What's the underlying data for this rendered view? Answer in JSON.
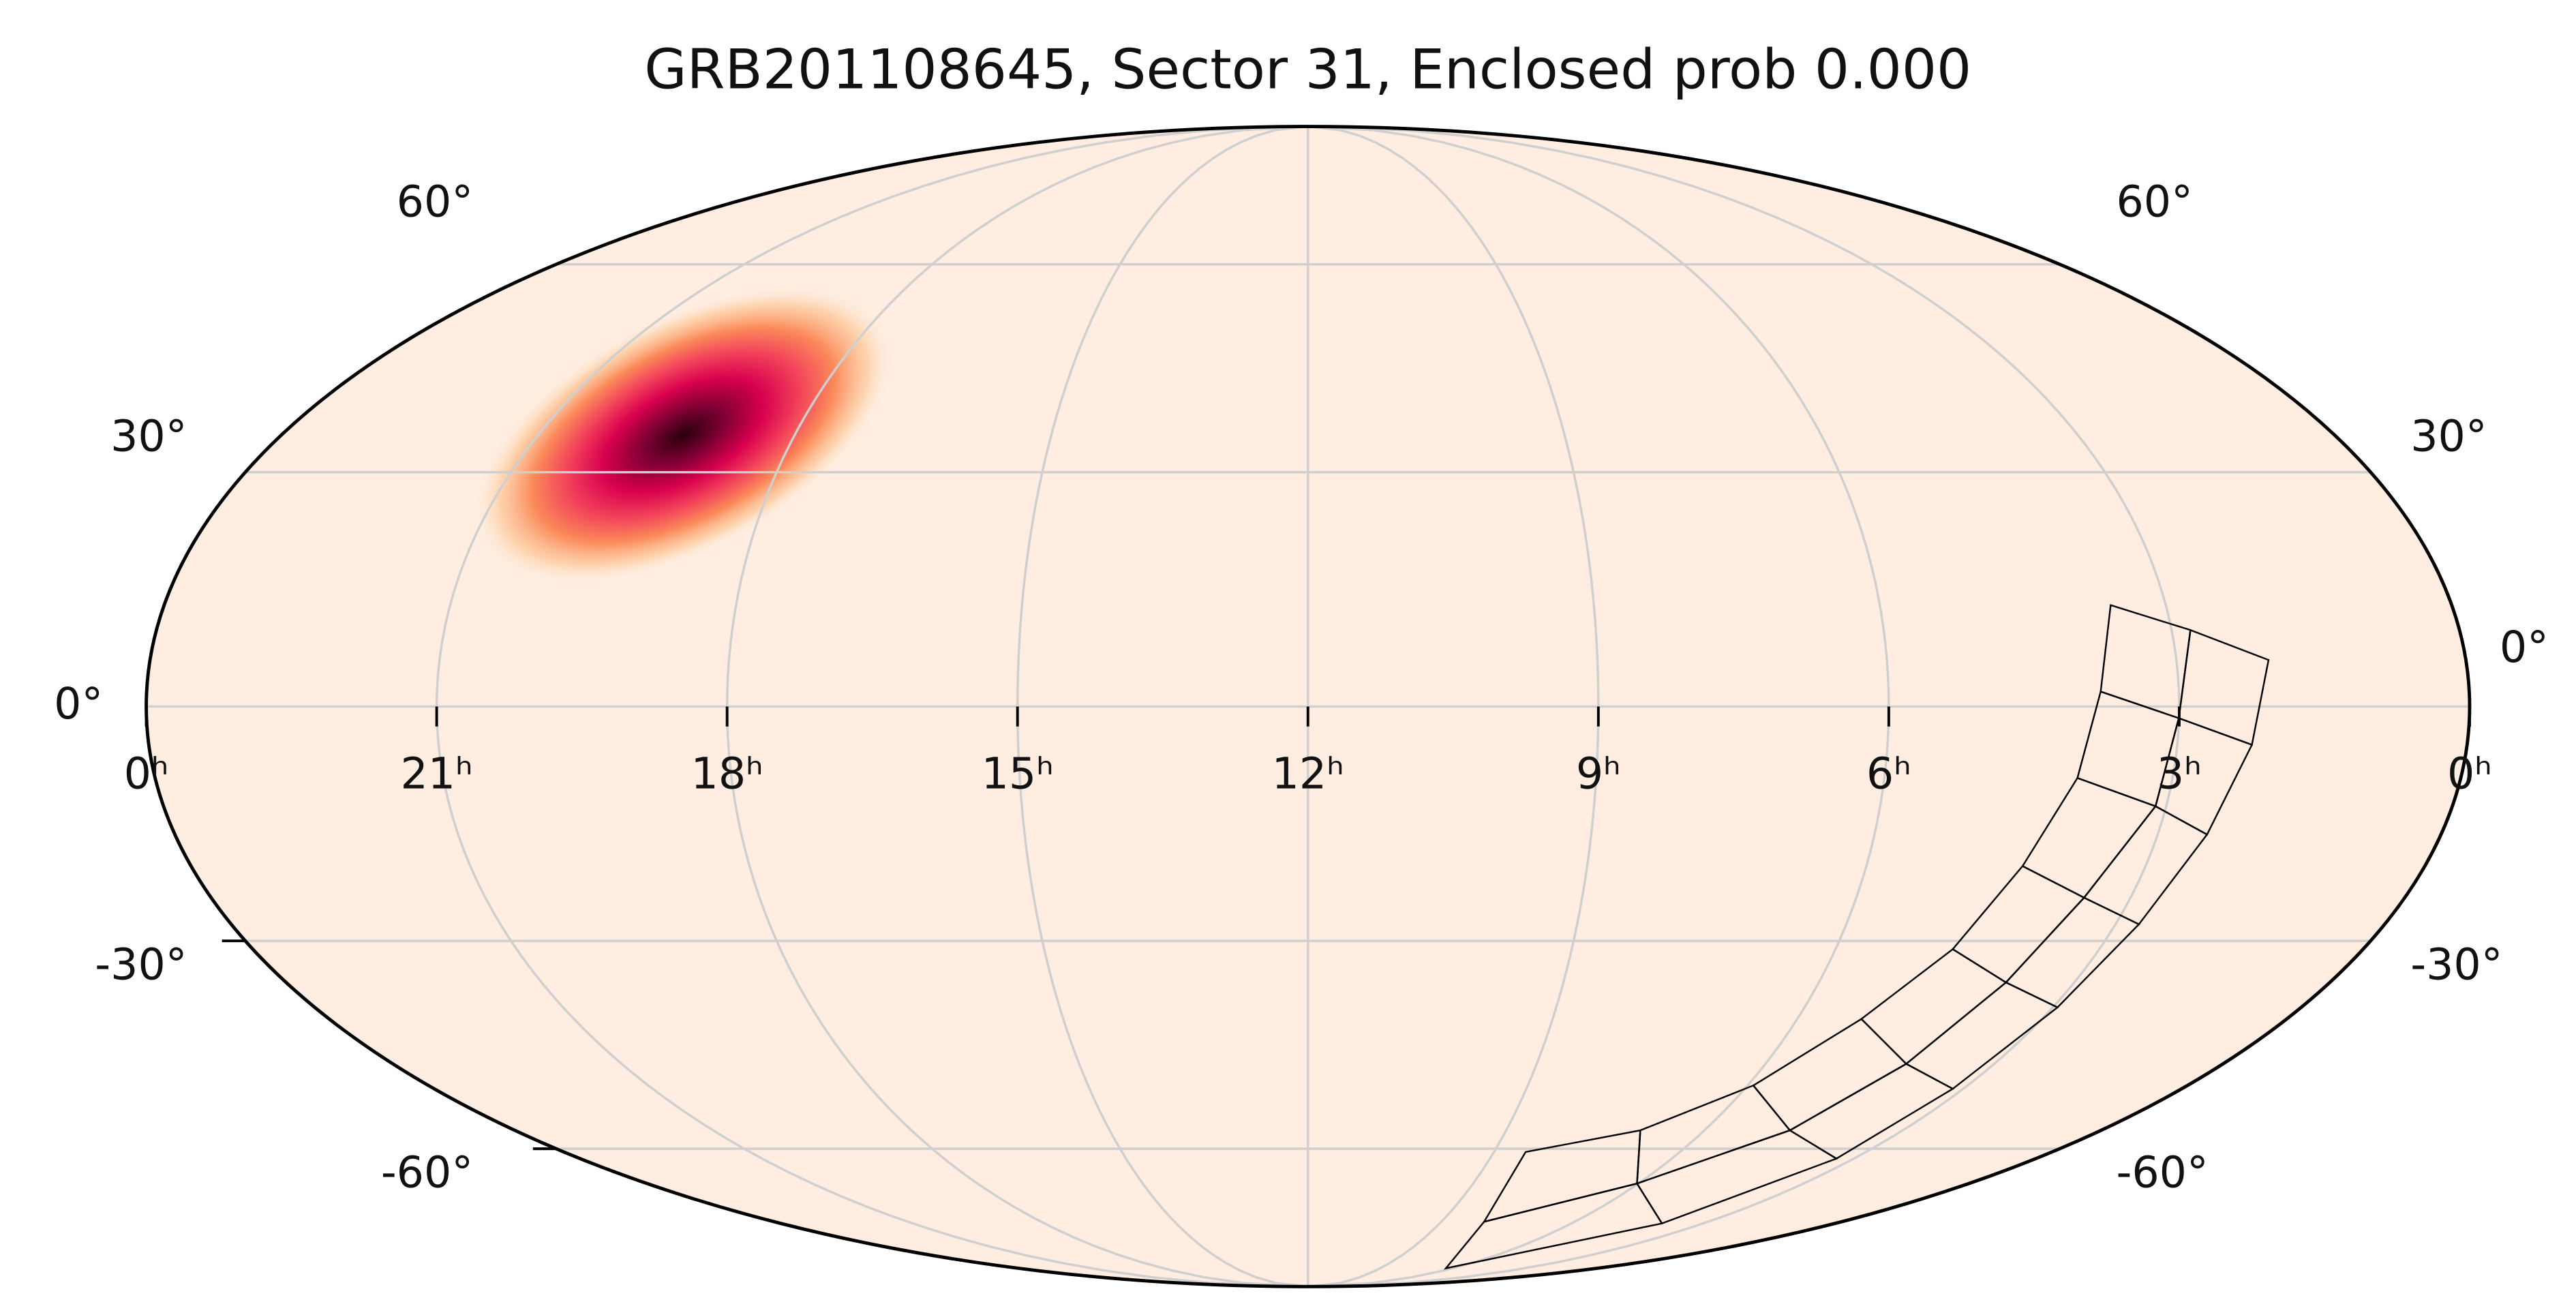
{
  "chart_data": {
    "type": "skymap",
    "projection": "mollweide",
    "title": "GRB201108645, Sector 31, Enclosed prob 0.000",
    "xlim": [
      24,
      0
    ],
    "xticks": [
      {
        "value": 24,
        "label": "0ʰ"
      },
      {
        "value": 21,
        "label": "21ʰ"
      },
      {
        "value": 18,
        "label": "18ʰ"
      },
      {
        "value": 15,
        "label": "15ʰ"
      },
      {
        "value": 12,
        "label": "12ʰ"
      },
      {
        "value": 9,
        "label": "9ʰ"
      },
      {
        "value": 6,
        "label": "6ʰ"
      },
      {
        "value": 3,
        "label": "3ʰ"
      },
      {
        "value": 0,
        "label": "0ʰ"
      }
    ],
    "ylim": [
      -90,
      90
    ],
    "yticks": [
      {
        "value": -60,
        "label": "-60°"
      },
      {
        "value": -30,
        "label": "-30°"
      },
      {
        "value": 0,
        "label": "0°"
      },
      {
        "value": 30,
        "label": "30°"
      },
      {
        "value": 60,
        "label": "60°"
      }
    ],
    "grid": true,
    "background_color": "#feede0",
    "probability_peak": {
      "ra": 19.3,
      "dec": 35
    }
  }
}
